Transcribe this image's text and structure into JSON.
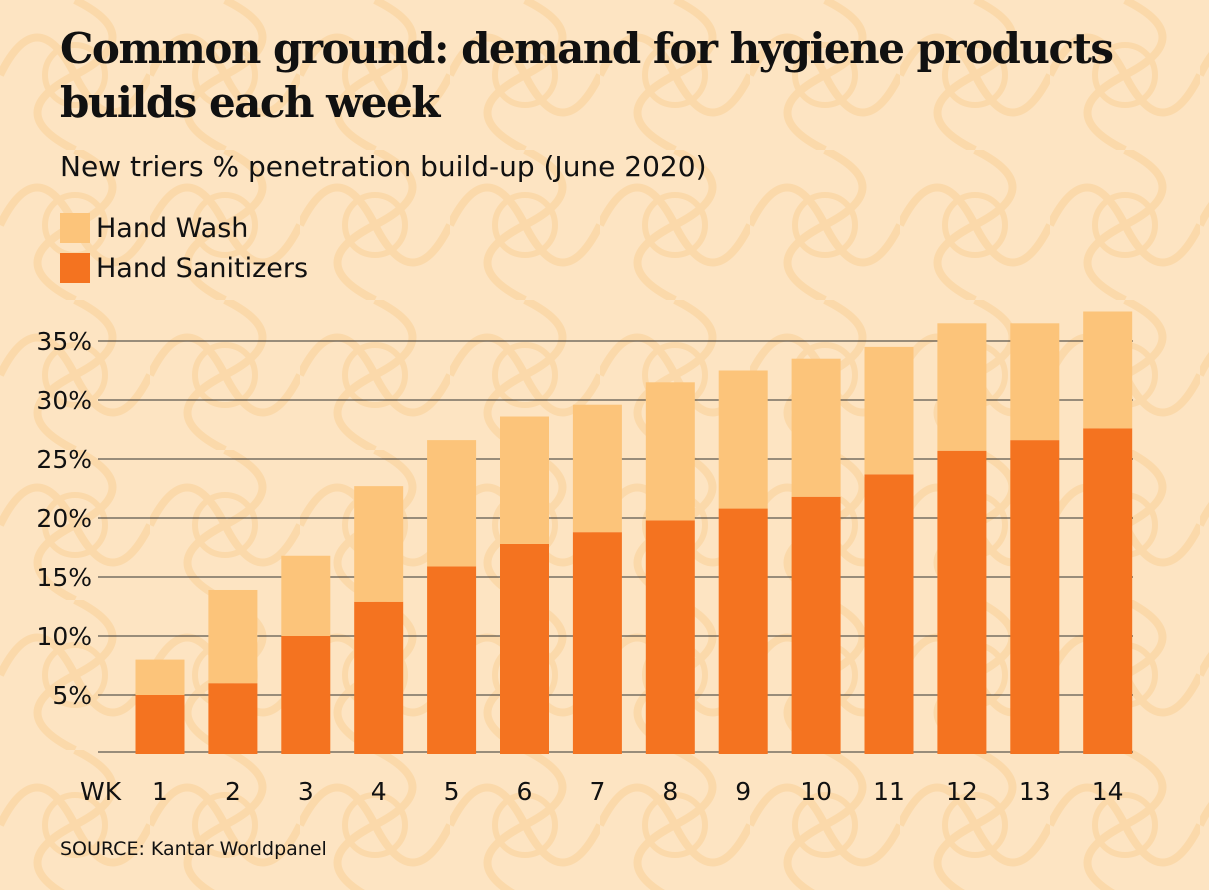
{
  "title": "Common ground: demand for hygiene products builds each week",
  "subtitle": "New triers % penetration build-up (June 2020)",
  "source": "SOURCE: Kantar Worldpanel",
  "colors": {
    "background": "#fde4c2",
    "hand_wash": "#fcc47a",
    "hand_sanitizers": "#f47320"
  },
  "chart_data": {
    "type": "bar",
    "stacked": true,
    "x_prefix": "WK",
    "categories": [
      "1",
      "2",
      "3",
      "4",
      "5",
      "6",
      "7",
      "8",
      "9",
      "10",
      "11",
      "12",
      "13",
      "14"
    ],
    "series": [
      {
        "name": "Hand Sanitizers",
        "color": "#f47320",
        "values": [
          5,
          6,
          10,
          12.9,
          15.9,
          17.8,
          18.8,
          19.8,
          20.8,
          21.8,
          23.7,
          25.7,
          26.6,
          27.6
        ]
      },
      {
        "name": "Hand Wash",
        "color": "#fcc47a",
        "values": [
          3,
          7.9,
          6.8,
          9.8,
          10.7,
          10.8,
          10.8,
          11.7,
          11.7,
          11.7,
          10.8,
          10.8,
          9.9,
          9.9
        ]
      }
    ],
    "yticks": [
      "5%",
      "10%",
      "15%",
      "20%",
      "25%",
      "30%",
      "35%"
    ],
    "ytick_values": [
      5,
      10,
      15,
      20,
      25,
      30,
      35
    ],
    "ylim": [
      0,
      38
    ],
    "grid": true,
    "legend": "top-left"
  }
}
